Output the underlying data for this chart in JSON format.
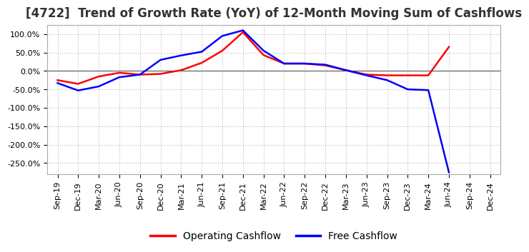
{
  "title": "[4722]  Trend of Growth Rate (YoY) of 12-Month Moving Sum of Cashflows",
  "x_labels": [
    "Sep-19",
    "Dec-19",
    "Mar-20",
    "Jun-20",
    "Sep-20",
    "Dec-20",
    "Mar-21",
    "Jun-21",
    "Sep-21",
    "Dec-21",
    "Mar-22",
    "Jun-22",
    "Sep-22",
    "Dec-22",
    "Mar-23",
    "Jun-23",
    "Sep-23",
    "Dec-23",
    "Mar-24",
    "Jun-24",
    "Sep-24",
    "Dec-24"
  ],
  "operating_cashflow": [
    -25,
    -35,
    -15,
    -5,
    -10,
    -8,
    2,
    22,
    55,
    105,
    43,
    20,
    20,
    15,
    2,
    -10,
    -12,
    -12,
    -12,
    65,
    null,
    null
  ],
  "free_cashflow": [
    -33,
    -53,
    -42,
    -17,
    -10,
    30,
    42,
    52,
    95,
    110,
    55,
    20,
    20,
    17,
    2,
    -12,
    -25,
    -50,
    -52,
    -275,
    null,
    null
  ],
  "ylim": [
    -280,
    125
  ],
  "yticks": [
    100,
    50,
    0,
    -50,
    -100,
    -150,
    -200,
    -250
  ],
  "operating_color": "#FF0000",
  "free_color": "#0000FF",
  "background_color": "#FFFFFF",
  "grid_color": "#BBBBBB",
  "legend_labels": [
    "Operating Cashflow",
    "Free Cashflow"
  ],
  "title_fontsize": 12,
  "tick_fontsize": 8,
  "legend_fontsize": 10
}
